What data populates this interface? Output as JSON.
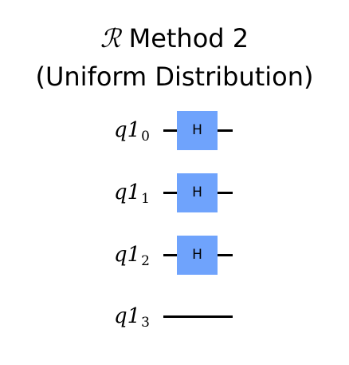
{
  "title": {
    "symbol": "ℛ",
    "line1": "Method 2",
    "line2": "(Uniform Distribution)"
  },
  "circuit": {
    "qubits": [
      {
        "register": "q1",
        "index": "0",
        "gate": "H"
      },
      {
        "register": "q1",
        "index": "1",
        "gate": "H"
      },
      {
        "register": "q1",
        "index": "2",
        "gate": "H"
      },
      {
        "register": "q1",
        "index": "3",
        "gate": null
      }
    ],
    "gate_color": "#6fa3fc",
    "wire_color": "#000000"
  }
}
